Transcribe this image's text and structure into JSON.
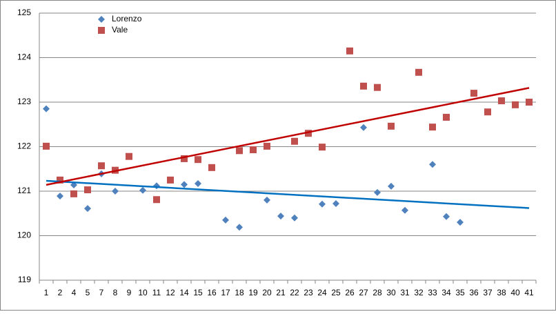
{
  "chart_data": {
    "type": "scatter",
    "categories": [
      "1",
      "2",
      "4",
      "5",
      "7",
      "8",
      "9",
      "10",
      "11",
      "12",
      "14",
      "15",
      "16",
      "17",
      "18",
      "19",
      "20",
      "21",
      "22",
      "23",
      "24",
      "25",
      "26",
      "27",
      "28",
      "30",
      "31",
      "32",
      "33",
      "34",
      "35",
      "36",
      "37",
      "38",
      "40",
      "41"
    ],
    "series": [
      {
        "name": "Lorenzo",
        "color": "#4f81bd",
        "marker": "diamond",
        "trendline_color": "#0070c0",
        "values": [
          122.85,
          120.89,
          121.14,
          120.61,
          121.39,
          121.0,
          null,
          121.02,
          121.12,
          null,
          121.15,
          121.17,
          null,
          120.35,
          120.19,
          null,
          120.8,
          120.44,
          120.4,
          null,
          120.71,
          120.72,
          null,
          122.43,
          120.97,
          121.11,
          120.57,
          null,
          121.6,
          120.43,
          120.3,
          null,
          null,
          null,
          null,
          null
        ]
      },
      {
        "name": "Vale",
        "color": "#c0504d",
        "marker": "square",
        "trendline_color": "#c00000",
        "values": [
          122.01,
          121.25,
          120.94,
          121.03,
          121.57,
          121.47,
          121.78,
          null,
          120.81,
          121.25,
          121.73,
          121.71,
          121.53,
          null,
          121.91,
          121.93,
          122.01,
          null,
          122.12,
          122.3,
          121.99,
          null,
          124.15,
          123.36,
          123.33,
          122.46,
          null,
          123.67,
          122.44,
          122.66,
          null,
          123.2,
          122.78,
          123.03,
          122.94,
          123.0
        ]
      }
    ],
    "ylim": [
      119,
      125
    ],
    "yticks": [
      119,
      120,
      121,
      122,
      123,
      124,
      125
    ],
    "grid": true,
    "trendline": "linear",
    "legend": "top-left"
  }
}
